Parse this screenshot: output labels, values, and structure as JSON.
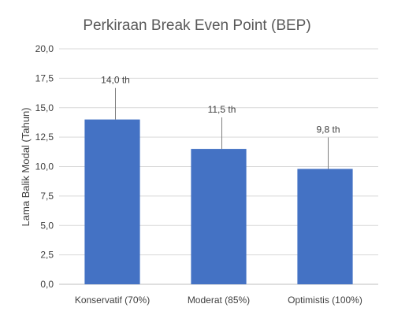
{
  "chart_data": {
    "type": "bar",
    "title": "Perkiraan Break Even Point (BEP)",
    "xlabel": "",
    "ylabel": "Lama Balik Modal (Tahun)",
    "categories": [
      "Konservatif (70%)",
      "Moderat (85%)",
      "Optimistis (100%)"
    ],
    "values": [
      14.0,
      11.5,
      9.8
    ],
    "data_labels": [
      "14,0 th",
      "11,5 th",
      "9,8 th"
    ],
    "ylim": [
      0,
      20
    ],
    "yticks": [
      "0,0",
      "2,5",
      "5,0",
      "7,5",
      "10,0",
      "12,5",
      "15,0",
      "17,5",
      "20,0"
    ],
    "grid": true,
    "legend": "none",
    "colors": {
      "bar": "#4472C4",
      "grid": "#d9d9d9",
      "leader": "#7f7f7f"
    }
  }
}
